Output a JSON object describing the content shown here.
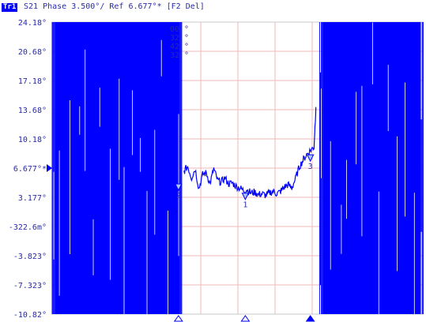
{
  "header": {
    "trace_badge": "Tr1",
    "title": "S21 Phase 3.500°/ Ref 6.677°* [F2 Del]"
  },
  "colors": {
    "trace": "#0000ff",
    "text": "#2a2aa8",
    "grid": "#f0b8b8",
    "marker_fill": "#aac4ff"
  },
  "chart_data": {
    "type": "line",
    "title": "S21 Phase 3.500°/ Ref 6.677°* [F2 Del]",
    "xlabel": "",
    "ylabel": "",
    "xlim": [
      0,
      10
    ],
    "ylim": [
      -10.823,
      24.177
    ],
    "grid": true,
    "reference_level": 6.677,
    "reference_label": "6.677°*",
    "y_ticks": [
      {
        "value": 24.177,
        "label": "24.18°"
      },
      {
        "value": 20.677,
        "label": "20.68°"
      },
      {
        "value": 17.177,
        "label": "17.18°"
      },
      {
        "value": 13.677,
        "label": "13.68°"
      },
      {
        "value": 10.177,
        "label": "10.18°"
      },
      {
        "value": 6.677,
        "label": "6.677°"
      },
      {
        "value": 3.177,
        "label": "3.177°"
      },
      {
        "value": -0.3226,
        "label": "-322.6m°"
      },
      {
        "value": -3.823,
        "label": "-3.823°"
      },
      {
        "value": -7.323,
        "label": "-7.323°"
      },
      {
        "value": -10.823,
        "label": "-10.82°"
      }
    ],
    "series": [
      {
        "x": [
          3.55,
          3.65,
          3.75,
          3.85,
          3.95,
          4.05,
          4.15,
          4.25,
          4.35,
          4.45,
          4.55,
          4.65,
          4.75,
          4.85,
          4.95,
          5.05,
          5.15,
          5.25,
          5.35,
          5.45,
          5.55,
          5.65,
          5.75,
          5.85,
          5.95,
          6.05,
          6.15,
          6.25,
          6.35,
          6.45,
          6.55,
          6.65,
          6.75,
          6.85,
          6.95,
          7.05,
          7.1
        ],
        "y": [
          6.3,
          6.9,
          5.5,
          6.6,
          4.2,
          5.9,
          6.1,
          4.8,
          6.6,
          5.2,
          5.0,
          5.5,
          4.8,
          4.9,
          4.5,
          4.3,
          4.0,
          4.1,
          3.7,
          3.8,
          3.5,
          3.6,
          3.4,
          3.7,
          3.9,
          3.6,
          3.9,
          4.4,
          4.7,
          4.3,
          5.4,
          6.8,
          7.6,
          8.3,
          8.8,
          9.2,
          14.0
        ]
      }
    ],
    "noise_regions": [
      [
        0,
        3.5
      ],
      [
        7.2,
        10
      ]
    ],
    "markers": [
      {
        "label": "1",
        "x": 5.2,
        "y": 3.3
      },
      {
        "label": "2",
        "x": 3.4,
        "y": 4.4
      },
      {
        "label": "3",
        "x": 6.95,
        "y": 7.9
      }
    ],
    "marker_readouts": [
      "00 °",
      "32 °",
      "42 °",
      "32 °"
    ]
  }
}
